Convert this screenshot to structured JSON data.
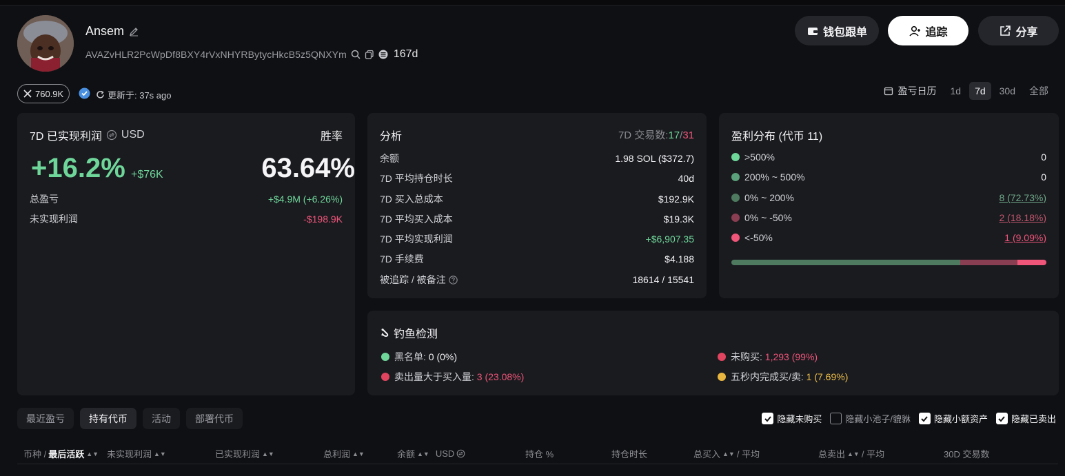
{
  "profile": {
    "name": "Ansem",
    "address": "AVAZvHLR2PcWpDf8BXY4rVxNHYRBytycHkcB5z5QNXYm",
    "age": "167d",
    "x_followers": "760.9K",
    "updated": "更新于: 37s ago"
  },
  "header_buttons": {
    "wallet_follow": "钱包跟单",
    "track": "追踪",
    "share": "分享"
  },
  "range": {
    "calendar_label": "盈亏日历",
    "options": [
      "1d",
      "7d",
      "30d",
      "全部"
    ],
    "active": "7d"
  },
  "pnl_card": {
    "title": "7D 已实现利润",
    "currency": "USD",
    "win_rate_label": "胜率",
    "pct": "+16.2%",
    "usd": "+$76K",
    "win_rate": "63.64%",
    "total_pnl_label": "总盈亏",
    "total_pnl": "+$4.9M (+6.26%)",
    "unrealized_label": "未实现利润",
    "unrealized": "-$198.9K"
  },
  "analysis": {
    "title": "分析",
    "trades_label": "7D 交易数:",
    "trades_win": "17",
    "trades_sep": "/",
    "trades_total": "31",
    "rows": [
      {
        "label": "余额",
        "value": "1.98 SOL ($372.7)"
      },
      {
        "label": "7D 平均持仓时长",
        "value": "40d"
      },
      {
        "label": "7D 买入总成本",
        "value": "$192.9K"
      },
      {
        "label": "7D 平均买入成本",
        "value": "$19.3K"
      },
      {
        "label": "7D 平均实现利润",
        "value": "+$6,907.35"
      },
      {
        "label": "7D 手续费",
        "value": "$4.188"
      },
      {
        "label": "被追踪 / 被备注",
        "value": "18614 / 15541"
      }
    ]
  },
  "distribution": {
    "title": "盈利分布 (代币 11)",
    "rows": [
      {
        "label": ">500%",
        "value": "0",
        "color": "#6fd69a"
      },
      {
        "label": "200% ~ 500%",
        "value": "0",
        "color": "#5aa07a"
      },
      {
        "label": "0% ~ 200%",
        "value": "8 (72.73%)",
        "color": "#4e7a60"
      },
      {
        "label": "0% ~ -50%",
        "value": "2 (18.18%)",
        "color": "#8a3e52"
      },
      {
        "label": "<-50%",
        "value": "1 (9.09%)",
        "color": "#f0557a"
      }
    ],
    "bar_fractions": [
      0.7273,
      0.1818,
      0.0909
    ],
    "bar_colors": [
      "#4e7a60",
      "#8a3e52",
      "#f0557a"
    ]
  },
  "phishing": {
    "title": "钓鱼检测",
    "blacklist_label": "黑名单:",
    "blacklist_value": "0 (0%)",
    "not_bought_label": "未购买:",
    "not_bought_value": "1,293 (99%)",
    "sold_more_label": "卖出量大于买入量:",
    "sold_more_value": "3 (23.08%)",
    "fast_label": "五秒内完成买/卖:",
    "fast_value": "1 (7.69%)"
  },
  "tabs": [
    "最近盈亏",
    "持有代币",
    "活动",
    "部署代币"
  ],
  "active_tab": "持有代币",
  "filters": [
    {
      "label": "隐藏未购买",
      "checked": true
    },
    {
      "label": "隐藏小池子/貔貅",
      "checked": false
    },
    {
      "label": "隐藏小额资产",
      "checked": true
    },
    {
      "label": "隐藏已卖出",
      "checked": true
    }
  ],
  "table_headers": {
    "token": "币种 /",
    "last_active": "最后活跃",
    "unrealized": "未实现利润",
    "realized": "已实现利润",
    "total": "总利润",
    "balance": "余额",
    "usd": "USD",
    "position": "持仓 %",
    "hold_time": "持仓时长",
    "total_buy": "总买入",
    "avg1": "/ 平均",
    "total_sell": "总卖出",
    "avg2": "/ 平均",
    "trades30": "30D 交易数"
  }
}
